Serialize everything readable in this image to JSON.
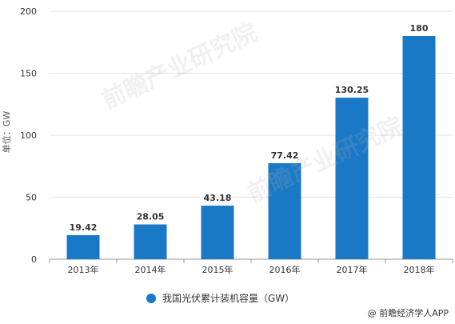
{
  "chart_data": {
    "type": "bar",
    "categories": [
      "2013年",
      "2014年",
      "2015年",
      "2016年",
      "2017年",
      "2018年"
    ],
    "values": [
      19.42,
      28.05,
      43.18,
      77.42,
      130.25,
      180
    ],
    "value_labels": [
      "19.42",
      "28.05",
      "43.18",
      "77.42",
      "130.25",
      "180"
    ],
    "series": [
      {
        "name": "我国光伏累计装机容量（GW）",
        "values": [
          19.42,
          28.05,
          43.18,
          77.42,
          130.25,
          180
        ]
      }
    ],
    "title": "",
    "xlabel": "",
    "ylabel": "单位：GW",
    "ylim": [
      0,
      200
    ],
    "yticks": [
      0,
      50,
      100,
      150,
      200
    ],
    "grid": true,
    "legend_position": "bottom",
    "bar_color": "#1a79c7"
  },
  "source_text": "@ 前瞻经济学人APP",
  "watermark_text": "前瞻产业研究院"
}
